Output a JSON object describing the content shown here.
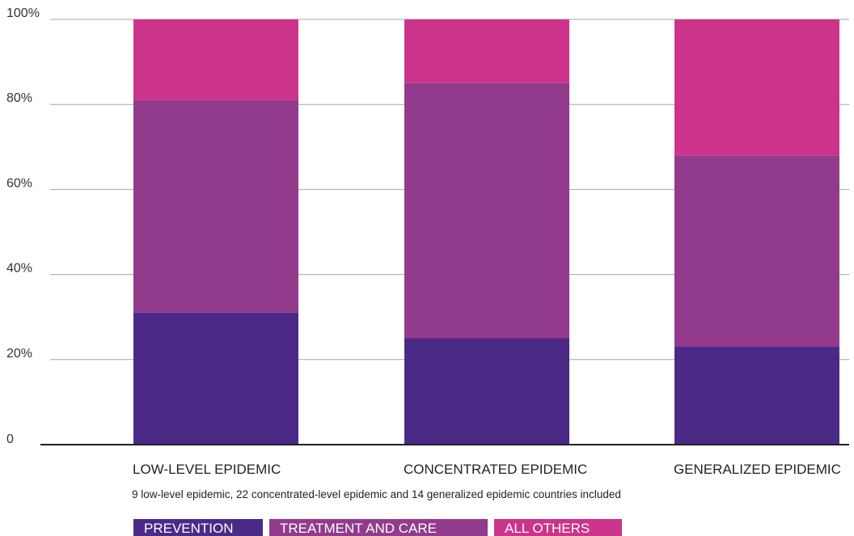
{
  "chart_data": {
    "type": "bar",
    "stacked": true,
    "categories": [
      "LOW-LEVEL EPIDEMIC",
      "CONCENTRATED EPIDEMIC",
      "GENERALIZED EPIDEMIC"
    ],
    "series": [
      {
        "name": "PREVENTION",
        "values": [
          31,
          25,
          23
        ],
        "color": "#4b2a87"
      },
      {
        "name": "TREATMENT AND CARE",
        "values": [
          50,
          60,
          45
        ],
        "color": "#923a8c"
      },
      {
        "name": "ALL OTHERS",
        "values": [
          19,
          15,
          32
        ],
        "color": "#cc338b"
      }
    ],
    "yticks": [
      "0",
      "20%",
      "40%",
      "60%",
      "80%",
      "100%"
    ],
    "ylim": [
      0,
      100
    ],
    "grid": true,
    "note": "9 low-level epidemic, 22 concentrated-level epidemic and 14 generalized epidemic countries included",
    "legend_position": "bottom-left"
  }
}
